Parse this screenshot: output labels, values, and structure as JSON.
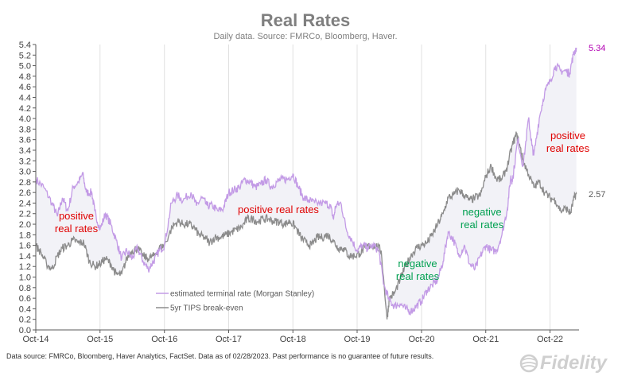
{
  "chart_data": {
    "type": "line",
    "title": "Real Rates",
    "subtitle": "Daily data.  Source: FMRCo, Bloomberg, Haver.",
    "ylim": [
      0.0,
      5.4
    ],
    "yticks": [
      "0.0",
      "0.2",
      "0.4",
      "0.6",
      "0.8",
      "1.0",
      "1.2",
      "1.4",
      "1.6",
      "1.8",
      "2.0",
      "2.2",
      "2.4",
      "2.6",
      "2.8",
      "3.0",
      "3.2",
      "3.4",
      "3.6",
      "3.8",
      "4.0",
      "4.2",
      "4.4",
      "4.6",
      "4.8",
      "5.0",
      "5.2",
      "5.4"
    ],
    "xlim": [
      "2014-10-01",
      "2023-03-15"
    ],
    "xticks": [
      {
        "label": "Oct-14",
        "date": "2014-10-01"
      },
      {
        "label": "Oct-15",
        "date": "2015-10-01"
      },
      {
        "label": "Oct-16",
        "date": "2016-10-01"
      },
      {
        "label": "Oct-17",
        "date": "2017-10-01"
      },
      {
        "label": "Oct-18",
        "date": "2018-10-01"
      },
      {
        "label": "Oct-19",
        "date": "2019-10-01"
      },
      {
        "label": "Oct-20",
        "date": "2020-10-01"
      },
      {
        "label": "Oct-21",
        "date": "2021-10-01"
      },
      {
        "label": "Oct-22",
        "date": "2022-10-01"
      }
    ],
    "grid": "vertical",
    "legend_position": "bottom-left",
    "shading": "between-series",
    "series": [
      {
        "name": "estimated terminal rate (Morgan Stanley)",
        "color": "#c39be6",
        "end_label": "5.34",
        "end_label_color": "#b300b3",
        "points": [
          [
            "2014-10-01",
            2.85
          ],
          [
            "2014-11-15",
            2.7
          ],
          [
            "2015-01-01",
            2.4
          ],
          [
            "2015-02-01",
            2.15
          ],
          [
            "2015-03-01",
            2.5
          ],
          [
            "2015-04-01",
            2.25
          ],
          [
            "2015-05-01",
            2.7
          ],
          [
            "2015-06-01",
            2.8
          ],
          [
            "2015-06-25",
            2.95
          ],
          [
            "2015-07-15",
            2.6
          ],
          [
            "2015-08-15",
            2.6
          ],
          [
            "2015-09-01",
            2.25
          ],
          [
            "2015-10-01",
            1.9
          ],
          [
            "2015-11-01",
            2.2
          ],
          [
            "2015-12-01",
            2.0
          ],
          [
            "2016-01-01",
            1.7
          ],
          [
            "2016-02-01",
            1.35
          ],
          [
            "2016-03-01",
            1.5
          ],
          [
            "2016-04-01",
            1.35
          ],
          [
            "2016-05-01",
            1.55
          ],
          [
            "2016-06-01",
            1.3
          ],
          [
            "2016-07-01",
            1.15
          ],
          [
            "2016-08-01",
            1.3
          ],
          [
            "2016-09-01",
            1.5
          ],
          [
            "2016-10-01",
            1.6
          ],
          [
            "2016-11-10",
            2.4
          ],
          [
            "2016-12-15",
            2.55
          ],
          [
            "2017-01-15",
            2.45
          ],
          [
            "2017-03-01",
            2.6
          ],
          [
            "2017-04-01",
            2.35
          ],
          [
            "2017-05-01",
            2.5
          ],
          [
            "2017-06-01",
            2.35
          ],
          [
            "2017-07-01",
            2.35
          ],
          [
            "2017-08-01",
            2.25
          ],
          [
            "2017-09-01",
            2.3
          ],
          [
            "2017-10-01",
            2.6
          ],
          [
            "2017-11-01",
            2.65
          ],
          [
            "2017-12-01",
            2.7
          ],
          [
            "2018-01-01",
            2.85
          ],
          [
            "2018-02-01",
            2.8
          ],
          [
            "2018-03-01",
            2.7
          ],
          [
            "2018-04-01",
            2.75
          ],
          [
            "2018-05-01",
            2.85
          ],
          [
            "2018-06-01",
            2.7
          ],
          [
            "2018-07-01",
            2.8
          ],
          [
            "2018-08-01",
            2.85
          ],
          [
            "2018-09-01",
            2.85
          ],
          [
            "2018-10-01",
            2.95
          ],
          [
            "2018-11-01",
            2.7
          ],
          [
            "2018-12-01",
            2.5
          ],
          [
            "2019-01-01",
            2.45
          ],
          [
            "2019-02-01",
            2.4
          ],
          [
            "2019-04-01",
            2.4
          ],
          [
            "2019-05-01",
            2.35
          ],
          [
            "2019-05-20",
            2.1
          ],
          [
            "2019-06-01",
            2.35
          ],
          [
            "2019-07-01",
            2.4
          ],
          [
            "2019-08-01",
            1.9
          ],
          [
            "2019-09-01",
            1.7
          ],
          [
            "2019-10-01",
            1.5
          ],
          [
            "2019-11-01",
            1.6
          ],
          [
            "2019-12-01",
            1.55
          ],
          [
            "2020-01-01",
            1.6
          ],
          [
            "2020-02-01",
            1.5
          ],
          [
            "2020-03-01",
            0.85
          ],
          [
            "2020-04-01",
            0.55
          ],
          [
            "2020-05-01",
            0.45
          ],
          [
            "2020-06-01",
            0.5
          ],
          [
            "2020-07-01",
            0.4
          ],
          [
            "2020-08-01",
            0.35
          ],
          [
            "2020-09-01",
            0.45
          ],
          [
            "2020-10-01",
            0.55
          ],
          [
            "2020-11-01",
            0.75
          ],
          [
            "2020-12-01",
            0.85
          ],
          [
            "2021-01-01",
            0.95
          ],
          [
            "2021-02-01",
            1.3
          ],
          [
            "2021-03-01",
            1.85
          ],
          [
            "2021-04-01",
            1.7
          ],
          [
            "2021-05-01",
            1.4
          ],
          [
            "2021-06-01",
            1.6
          ],
          [
            "2021-07-01",
            1.25
          ],
          [
            "2021-08-01",
            1.15
          ],
          [
            "2021-09-01",
            1.4
          ],
          [
            "2021-10-01",
            1.6
          ],
          [
            "2021-11-01",
            1.5
          ],
          [
            "2021-12-01",
            1.5
          ],
          [
            "2022-01-01",
            1.8
          ],
          [
            "2022-02-01",
            2.3
          ],
          [
            "2022-02-20",
            2.9
          ],
          [
            "2022-03-01",
            2.8
          ],
          [
            "2022-04-01",
            3.6
          ],
          [
            "2022-05-01",
            3.1
          ],
          [
            "2022-06-01",
            4.0
          ],
          [
            "2022-06-20",
            3.5
          ],
          [
            "2022-07-01",
            3.3
          ],
          [
            "2022-08-01",
            4.0
          ],
          [
            "2022-09-01",
            4.5
          ],
          [
            "2022-10-01",
            4.7
          ],
          [
            "2022-11-01",
            5.0
          ],
          [
            "2022-12-01",
            4.9
          ],
          [
            "2023-01-01",
            4.9
          ],
          [
            "2023-01-20",
            4.85
          ],
          [
            "2023-02-10",
            5.2
          ],
          [
            "2023-02-28",
            5.34
          ]
        ]
      },
      {
        "name": "5yr TIPS break-even",
        "color": "#8c8c8c",
        "end_label": "2.57",
        "end_label_color": "#595959",
        "points": [
          [
            "2014-10-01",
            1.6
          ],
          [
            "2014-11-01",
            1.45
          ],
          [
            "2014-12-01",
            1.25
          ],
          [
            "2015-01-01",
            1.15
          ],
          [
            "2015-02-01",
            1.4
          ],
          [
            "2015-03-01",
            1.55
          ],
          [
            "2015-04-01",
            1.6
          ],
          [
            "2015-05-01",
            1.7
          ],
          [
            "2015-06-01",
            1.65
          ],
          [
            "2015-07-01",
            1.65
          ],
          [
            "2015-08-01",
            1.3
          ],
          [
            "2015-09-01",
            1.2
          ],
          [
            "2015-10-01",
            1.25
          ],
          [
            "2015-11-01",
            1.35
          ],
          [
            "2015-12-01",
            1.25
          ],
          [
            "2016-01-01",
            1.05
          ],
          [
            "2016-02-01",
            1.05
          ],
          [
            "2016-03-01",
            1.35
          ],
          [
            "2016-04-01",
            1.5
          ],
          [
            "2016-05-01",
            1.55
          ],
          [
            "2016-06-01",
            1.4
          ],
          [
            "2016-07-01",
            1.35
          ],
          [
            "2016-08-01",
            1.4
          ],
          [
            "2016-09-01",
            1.55
          ],
          [
            "2016-10-01",
            1.6
          ],
          [
            "2016-11-15",
            1.95
          ],
          [
            "2016-12-15",
            2.05
          ],
          [
            "2017-01-15",
            2.0
          ],
          [
            "2017-02-15",
            2.0
          ],
          [
            "2017-03-15",
            1.95
          ],
          [
            "2017-04-15",
            1.8
          ],
          [
            "2017-05-15",
            1.75
          ],
          [
            "2017-06-15",
            1.65
          ],
          [
            "2017-07-15",
            1.75
          ],
          [
            "2017-08-15",
            1.75
          ],
          [
            "2017-09-15",
            1.8
          ],
          [
            "2017-10-15",
            1.85
          ],
          [
            "2017-11-15",
            1.9
          ],
          [
            "2017-12-15",
            1.95
          ],
          [
            "2018-01-15",
            2.1
          ],
          [
            "2018-02-15",
            2.1
          ],
          [
            "2018-03-15",
            2.05
          ],
          [
            "2018-04-15",
            2.1
          ],
          [
            "2018-05-15",
            2.1
          ],
          [
            "2018-06-15",
            2.05
          ],
          [
            "2018-07-15",
            2.05
          ],
          [
            "2018-08-15",
            2.0
          ],
          [
            "2018-09-15",
            2.05
          ],
          [
            "2018-10-15",
            1.95
          ],
          [
            "2018-11-15",
            1.75
          ],
          [
            "2018-12-15",
            1.65
          ],
          [
            "2019-01-15",
            1.6
          ],
          [
            "2019-02-15",
            1.75
          ],
          [
            "2019-03-15",
            1.75
          ],
          [
            "2019-04-15",
            1.8
          ],
          [
            "2019-05-15",
            1.7
          ],
          [
            "2019-06-15",
            1.55
          ],
          [
            "2019-07-15",
            1.55
          ],
          [
            "2019-08-15",
            1.4
          ],
          [
            "2019-09-15",
            1.4
          ],
          [
            "2019-10-15",
            1.45
          ],
          [
            "2019-11-15",
            1.55
          ],
          [
            "2019-12-15",
            1.6
          ],
          [
            "2020-01-15",
            1.6
          ],
          [
            "2020-02-15",
            1.5
          ],
          [
            "2020-03-19",
            0.2
          ],
          [
            "2020-04-01",
            0.6
          ],
          [
            "2020-05-01",
            0.7
          ],
          [
            "2020-06-01",
            0.95
          ],
          [
            "2020-07-01",
            1.2
          ],
          [
            "2020-08-01",
            1.4
          ],
          [
            "2020-09-01",
            1.55
          ],
          [
            "2020-10-01",
            1.6
          ],
          [
            "2020-11-01",
            1.65
          ],
          [
            "2020-12-01",
            1.8
          ],
          [
            "2021-01-01",
            2.0
          ],
          [
            "2021-02-01",
            2.2
          ],
          [
            "2021-03-01",
            2.5
          ],
          [
            "2021-04-01",
            2.55
          ],
          [
            "2021-05-01",
            2.65
          ],
          [
            "2021-06-01",
            2.55
          ],
          [
            "2021-07-01",
            2.45
          ],
          [
            "2021-08-01",
            2.5
          ],
          [
            "2021-09-01",
            2.55
          ],
          [
            "2021-10-01",
            2.9
          ],
          [
            "2021-11-01",
            3.1
          ],
          [
            "2021-12-01",
            2.85
          ],
          [
            "2022-01-01",
            2.85
          ],
          [
            "2022-02-01",
            3.1
          ],
          [
            "2022-03-01",
            3.5
          ],
          [
            "2022-03-25",
            3.7
          ],
          [
            "2022-04-15",
            3.45
          ],
          [
            "2022-05-01",
            3.2
          ],
          [
            "2022-06-01",
            2.95
          ],
          [
            "2022-07-01",
            2.7
          ],
          [
            "2022-08-01",
            2.8
          ],
          [
            "2022-09-01",
            2.6
          ],
          [
            "2022-10-01",
            2.5
          ],
          [
            "2022-11-01",
            2.45
          ],
          [
            "2022-12-01",
            2.25
          ],
          [
            "2023-01-01",
            2.3
          ],
          [
            "2023-01-25",
            2.2
          ],
          [
            "2023-02-15",
            2.5
          ],
          [
            "2023-02-28",
            2.57
          ]
        ]
      }
    ],
    "annotations": [
      {
        "id": "ann1",
        "lines": [
          "positive",
          "real rates"
        ],
        "color": "#e00000"
      },
      {
        "id": "ann2",
        "lines": [
          "positive  real rates"
        ],
        "color": "#e00000"
      },
      {
        "id": "ann3",
        "lines": [
          "negative",
          "real rates"
        ],
        "color": "#00a050"
      },
      {
        "id": "ann4",
        "lines": [
          "negative",
          "real rates"
        ],
        "color": "#00a050"
      },
      {
        "id": "ann5",
        "lines": [
          "positive",
          "real rates"
        ],
        "color": "#e00000"
      }
    ]
  },
  "footer": {
    "text": "Data source: FMRCo, Bloomberg, Haver Analytics, FactSet. Data as of 02/28/2023. Past performance is no guarantee of future results."
  },
  "logo": {
    "text": "Fidelity"
  },
  "colors": {
    "shade": "#f2f2f7",
    "grid": "#e0e0e0"
  }
}
